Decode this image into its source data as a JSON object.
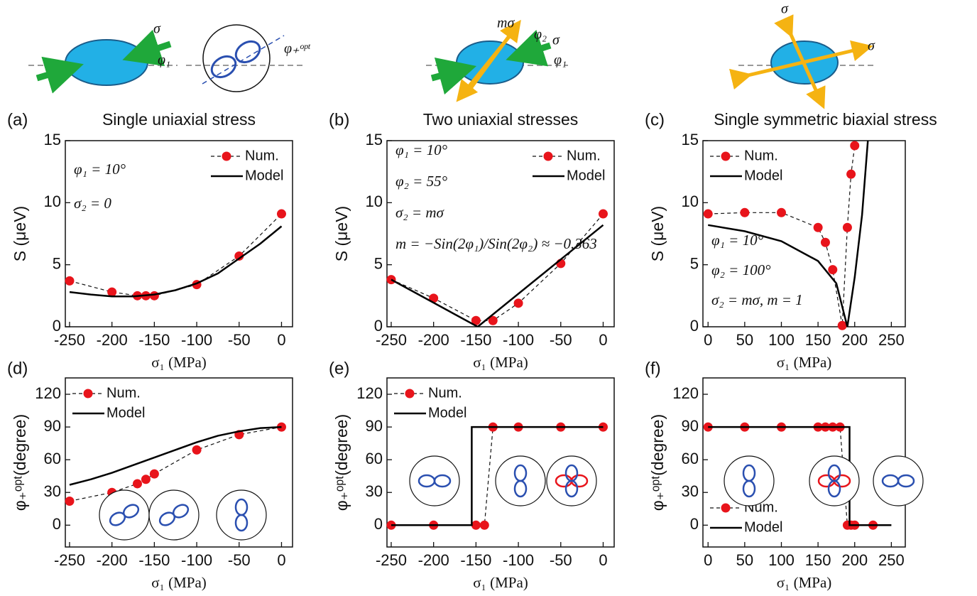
{
  "schematics": {
    "labels": [
      "σ",
      "φ₁",
      "φ₊ᵒᵖᵗ",
      "mσ",
      "φ₂",
      "σ",
      "φ₁",
      "σ",
      "σ"
    ]
  },
  "chart_data": [
    {
      "type": "line",
      "label": "(a)",
      "title": "Single uniaxial stress",
      "x_label": "σ₁ (MPa)",
      "y_label": "S (μeV)",
      "annotations": [
        "φ₁ = 10°",
        "σ₂ = 0"
      ],
      "legend": "upper right",
      "xlim": [
        -255,
        13
      ],
      "xticks": [
        -250,
        -200,
        -150,
        -100,
        -50,
        0
      ],
      "ylim": [
        0,
        15
      ],
      "yticks": [
        0,
        5,
        10,
        15
      ],
      "series": [
        {
          "name": "Num.",
          "color": "#e8141b",
          "x": [
            -250,
            -200,
            -170,
            -160,
            -150,
            -100,
            -50,
            0
          ],
          "values": [
            3.7,
            2.8,
            2.5,
            2.5,
            2.5,
            3.4,
            5.7,
            9.1
          ]
        },
        {
          "name": "Model",
          "color": "#000000",
          "x": [
            -250,
            -225,
            -200,
            -175,
            -150,
            -125,
            -100,
            -75,
            -50,
            -25,
            0
          ],
          "values": [
            2.8,
            2.6,
            2.45,
            2.45,
            2.6,
            2.95,
            3.5,
            4.3,
            5.5,
            6.7,
            8.1
          ]
        }
      ]
    },
    {
      "type": "line",
      "label": "(b)",
      "title": "Two uniaxial stresses",
      "x_label": "σ₁ (MPa)",
      "y_label": "S (μeV)",
      "annotations": [
        "φ₁ = 10°",
        "φ₂ = 55°",
        "σ₂ = mσ",
        "m = −Sin(2φ₁)/Sin(2φ₂) ≈ −0.363"
      ],
      "legend": "upper right",
      "xlim": [
        -255,
        13
      ],
      "xticks": [
        -250,
        -200,
        -150,
        -100,
        -50,
        0
      ],
      "ylim": [
        0,
        15
      ],
      "yticks": [
        0,
        5,
        10,
        15
      ],
      "series": [
        {
          "name": "Num.",
          "color": "#e8141b",
          "x": [
            -250,
            -200,
            -150,
            -130,
            -100,
            -50,
            0
          ],
          "values": [
            3.8,
            2.3,
            0.5,
            0.5,
            1.9,
            5.1,
            9.1
          ]
        },
        {
          "name": "Model",
          "color": "#000000",
          "x": [
            -250,
            -148,
            0
          ],
          "values": [
            3.8,
            0,
            8.2
          ]
        }
      ]
    },
    {
      "type": "line",
      "label": "(c)",
      "title": "Single symmetric biaxial stress",
      "x_label": "σ₁ (MPa)",
      "y_label": "S (μeV)",
      "annotations": [
        "φ₁ = 10°",
        "φ₂ = 100°",
        "σ₂ = mσ, m = 1"
      ],
      "legend": "upper left",
      "xlim": [
        -7,
        269
      ],
      "xticks": [
        0,
        50,
        100,
        150,
        200,
        250
      ],
      "ylim": [
        0,
        15
      ],
      "yticks": [
        0,
        5,
        10,
        15
      ],
      "series": [
        {
          "name": "Num.",
          "color": "#e8141b",
          "x": [
            0,
            50,
            100,
            150,
            160,
            170,
            183,
            190,
            195,
            200
          ],
          "values": [
            9.1,
            9.2,
            9.2,
            8.0,
            6.8,
            4.6,
            0.1,
            8.0,
            12.3,
            14.6
          ]
        },
        {
          "name": "Model",
          "color": "#000000",
          "x": [
            0,
            50,
            100,
            150,
            175,
            190,
            200,
            210,
            218
          ],
          "values": [
            8.2,
            7.7,
            6.9,
            5.3,
            3.5,
            0,
            4,
            9,
            15
          ]
        }
      ]
    },
    {
      "type": "line",
      "label": "(d)",
      "x_label": "σ₁ (MPa)",
      "y_label": "φ₊ᵒᵖᵗ(degree)",
      "legend": "upper left",
      "xlim": [
        -255,
        13
      ],
      "xticks": [
        -250,
        -200,
        -150,
        -100,
        -50,
        0
      ],
      "ylim": [
        -20,
        135
      ],
      "yticks": [
        0,
        30,
        60,
        90,
        120
      ],
      "series": [
        {
          "name": "Num.",
          "color": "#e8141b",
          "x": [
            -250,
            -200,
            -170,
            -160,
            -150,
            -100,
            -50,
            0
          ],
          "values": [
            22,
            30,
            38,
            42,
            47,
            69,
            83,
            90
          ]
        },
        {
          "name": "Model",
          "color": "#000000",
          "x": [
            -250,
            -225,
            -200,
            -175,
            -150,
            -125,
            -100,
            -75,
            -50,
            -25,
            0
          ],
          "values": [
            37,
            42,
            48,
            55,
            62,
            69,
            76,
            82,
            86,
            89,
            90
          ]
        }
      ]
    },
    {
      "type": "line",
      "label": "(e)",
      "x_label": "σ₁ (MPa)",
      "y_label": "φ₊ᵒᵖᵗ(degree)",
      "legend": "upper left",
      "xlim": [
        -255,
        13
      ],
      "xticks": [
        -250,
        -200,
        -150,
        -100,
        -50,
        0
      ],
      "ylim": [
        -20,
        135
      ],
      "yticks": [
        0,
        30,
        60,
        90,
        120
      ],
      "series": [
        {
          "name": "Num.",
          "color": "#e8141b",
          "x": [
            -250,
            -200,
            -150,
            -140,
            -130,
            -100,
            -50,
            0
          ],
          "values": [
            0,
            0,
            0,
            0,
            90,
            90,
            90,
            90
          ]
        },
        {
          "name": "Model",
          "color": "#000000",
          "x": [
            -250,
            -155,
            -155,
            0
          ],
          "values": [
            0,
            0,
            90,
            90
          ]
        }
      ]
    },
    {
      "type": "line",
      "label": "(f)",
      "x_label": "σ₁ (MPa)",
      "y_label": "φ₊ᵒᵖᵗ(degree)",
      "legend": "lower left",
      "xlim": [
        -7,
        269
      ],
      "xticks": [
        0,
        50,
        100,
        150,
        200,
        250
      ],
      "ylim": [
        -20,
        135
      ],
      "yticks": [
        0,
        30,
        60,
        90,
        120
      ],
      "series": [
        {
          "name": "Num.",
          "color": "#e8141b",
          "x": [
            0,
            50,
            100,
            150,
            160,
            170,
            180,
            190,
            195,
            200,
            225
          ],
          "values": [
            90,
            90,
            90,
            90,
            90,
            90,
            90,
            0,
            0,
            0,
            0
          ]
        },
        {
          "name": "Model",
          "color": "#000000",
          "x": [
            0,
            193,
            193,
            250
          ],
          "values": [
            90,
            90,
            0,
            0
          ]
        }
      ]
    }
  ]
}
